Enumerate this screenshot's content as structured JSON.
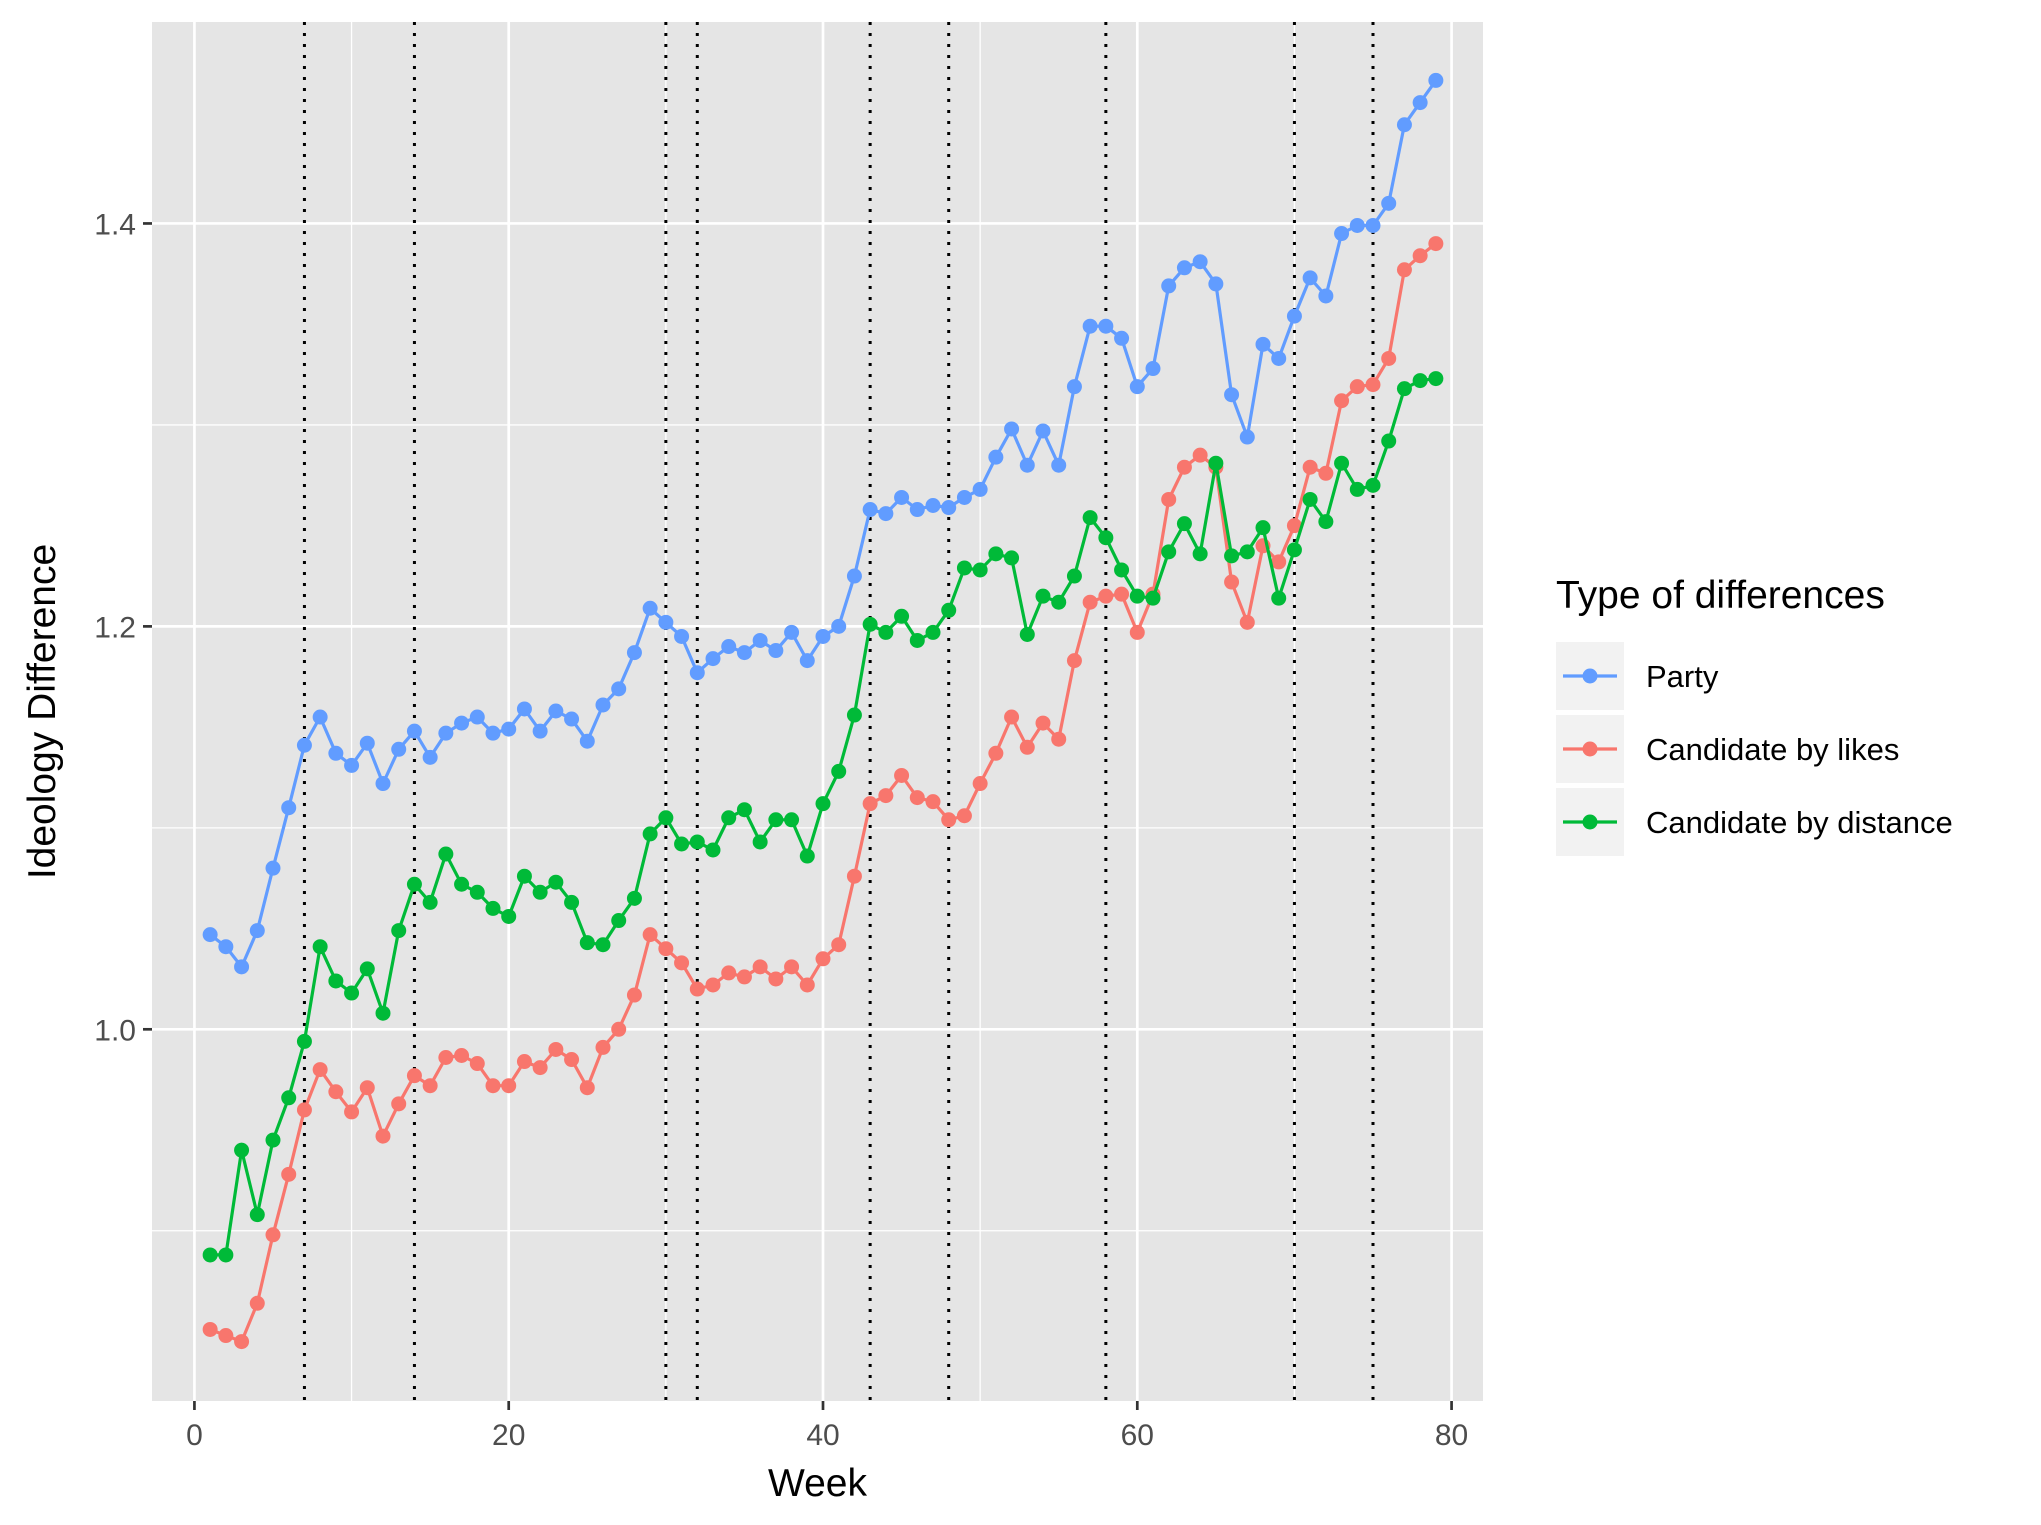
{
  "chart_data": {
    "type": "line",
    "xlabel": "Week",
    "ylabel": "Ideology Difference",
    "xlim": [
      -2.7,
      82
    ],
    "ylim": [
      0.8155,
      1.5
    ],
    "x_ticks": [
      0,
      20,
      40,
      60,
      80
    ],
    "x_tick_labels": [
      "0",
      "20",
      "40",
      "60",
      "80"
    ],
    "x_minor_ticks": [
      10,
      30,
      50,
      70
    ],
    "y_ticks": [
      1.0,
      1.2,
      1.4
    ],
    "y_tick_labels": [
      "1.0",
      "1.2",
      "1.4"
    ],
    "y_minor_ticks": [
      0.9,
      1.1,
      1.3
    ],
    "grid": true,
    "background": "#e5e5e5",
    "vlines": [
      7,
      14,
      30,
      32,
      43,
      48,
      58,
      70,
      75
    ],
    "vline_style": "dotted",
    "legend": {
      "title": "Type of differences",
      "position": "right"
    },
    "x": [
      1,
      2,
      3,
      4,
      5,
      6,
      7,
      8,
      9,
      10,
      11,
      12,
      13,
      14,
      15,
      16,
      17,
      18,
      19,
      20,
      21,
      22,
      23,
      24,
      25,
      26,
      27,
      28,
      29,
      30,
      31,
      32,
      33,
      34,
      35,
      36,
      37,
      38,
      39,
      40,
      41,
      42,
      43,
      44,
      45,
      46,
      47,
      48,
      49,
      50,
      51,
      52,
      53,
      54,
      55,
      56,
      57,
      58,
      59,
      60,
      61,
      62,
      63,
      64,
      65,
      66,
      67,
      68,
      69,
      70,
      71,
      72,
      73,
      74,
      75,
      76,
      77,
      78,
      79
    ],
    "series": [
      {
        "name": "Party",
        "color": "#619CFF",
        "values": [
          1.047,
          1.041,
          1.031,
          1.049,
          1.08,
          1.11,
          1.141,
          1.155,
          1.137,
          1.131,
          1.142,
          1.122,
          1.139,
          1.148,
          1.135,
          1.147,
          1.152,
          1.155,
          1.147,
          1.149,
          1.159,
          1.148,
          1.158,
          1.154,
          1.143,
          1.161,
          1.169,
          1.187,
          1.209,
          1.202,
          1.195,
          1.177,
          1.184,
          1.19,
          1.187,
          1.193,
          1.188,
          1.197,
          1.183,
          1.195,
          1.2,
          1.225,
          1.258,
          1.256,
          1.264,
          1.258,
          1.26,
          1.259,
          1.264,
          1.268,
          1.284,
          1.298,
          1.28,
          1.297,
          1.28,
          1.319,
          1.349,
          1.349,
          1.343,
          1.319,
          1.328,
          1.369,
          1.378,
          1.381,
          1.37,
          1.315,
          1.294,
          1.34,
          1.333,
          1.354,
          1.373,
          1.364,
          1.395,
          1.399,
          1.399,
          1.41,
          1.449,
          1.46,
          1.471
        ]
      },
      {
        "name": "Candidate by likes",
        "color": "#F8766D",
        "values": [
          0.851,
          0.848,
          0.845,
          0.864,
          0.898,
          0.928,
          0.96,
          0.98,
          0.969,
          0.959,
          0.971,
          0.947,
          0.963,
          0.977,
          0.972,
          0.986,
          0.987,
          0.983,
          0.972,
          0.972,
          0.984,
          0.981,
          0.99,
          0.985,
          0.971,
          0.991,
          1.0,
          1.017,
          1.047,
          1.04,
          1.033,
          1.02,
          1.022,
          1.028,
          1.026,
          1.031,
          1.025,
          1.031,
          1.022,
          1.035,
          1.042,
          1.076,
          1.112,
          1.116,
          1.126,
          1.115,
          1.113,
          1.104,
          1.106,
          1.122,
          1.137,
          1.155,
          1.14,
          1.152,
          1.144,
          1.183,
          1.212,
          1.215,
          1.216,
          1.197,
          1.216,
          1.263,
          1.279,
          1.285,
          1.279,
          1.222,
          1.202,
          1.24,
          1.232,
          1.25,
          1.279,
          1.276,
          1.312,
          1.319,
          1.32,
          1.333,
          1.377,
          1.384,
          1.39
        ]
      },
      {
        "name": "Candidate by distance",
        "color": "#00BA38",
        "values": [
          0.888,
          0.888,
          0.94,
          0.908,
          0.945,
          0.966,
          0.994,
          1.041,
          1.024,
          1.018,
          1.03,
          1.008,
          1.049,
          1.072,
          1.063,
          1.087,
          1.072,
          1.068,
          1.06,
          1.056,
          1.076,
          1.068,
          1.073,
          1.063,
          1.043,
          1.042,
          1.054,
          1.065,
          1.097,
          1.105,
          1.092,
          1.093,
          1.089,
          1.105,
          1.109,
          1.093,
          1.104,
          1.104,
          1.086,
          1.112,
          1.128,
          1.156,
          1.201,
          1.197,
          1.205,
          1.193,
          1.197,
          1.208,
          1.229,
          1.228,
          1.236,
          1.234,
          1.196,
          1.215,
          1.212,
          1.225,
          1.254,
          1.244,
          1.228,
          1.215,
          1.214,
          1.237,
          1.251,
          1.236,
          1.281,
          1.235,
          1.237,
          1.249,
          1.214,
          1.238,
          1.263,
          1.252,
          1.281,
          1.268,
          1.27,
          1.292,
          1.318,
          1.322,
          1.323
        ]
      }
    ]
  }
}
